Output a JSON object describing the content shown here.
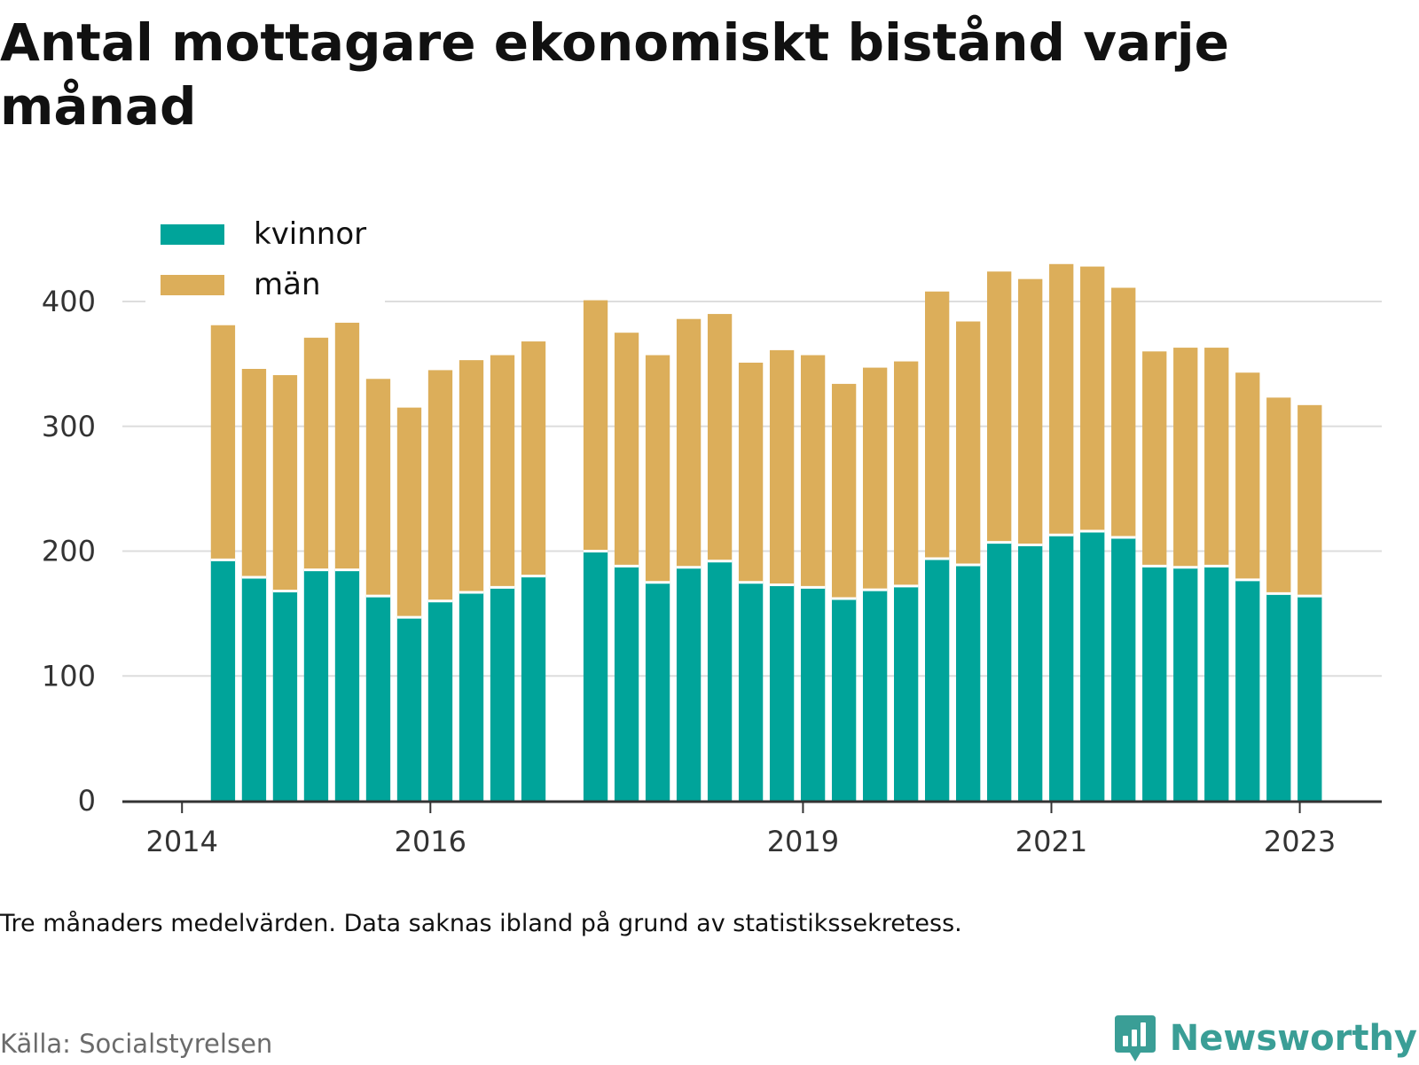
{
  "title": "Antal mottagare ekonomiskt bistånd varje månad",
  "note": "Tre månaders medelvärden. Data saknas ibland på grund av statistikssekretess.",
  "source": "Källa: Socialstyrelsen",
  "brand": {
    "name": "Newsworthy",
    "icon": "newsworthy-bar-chart-icon"
  },
  "colors": {
    "kvinnor": "#00a49a",
    "man": "#dcae5a",
    "grid": "#dddddd",
    "axis": "#333333",
    "brand": "#3a9e96"
  },
  "chart_data": {
    "type": "bar",
    "stacked": true,
    "legend": {
      "placement": "top-left",
      "entries": [
        "kvinnor",
        "män"
      ]
    },
    "grid": true,
    "ylim": [
      0,
      400
    ],
    "y_ticks": [
      0,
      100,
      200,
      300,
      400
    ],
    "xlabel": "",
    "ylabel": "",
    "x_ticks": [
      {
        "label": "2014",
        "x": 2014.0
      },
      {
        "label": "2016",
        "x": 2016.0
      },
      {
        "label": "2019",
        "x": 2019.0
      },
      {
        "label": "2021",
        "x": 2021.0
      },
      {
        "label": "2023",
        "x": 2023.0
      }
    ],
    "x_range": [
      2013.52,
      2023.66
    ],
    "bar_width_years": 0.195,
    "x": [
      2014.33,
      2014.58,
      2014.83,
      2015.08,
      2015.33,
      2015.58,
      2015.83,
      2016.08,
      2016.33,
      2016.58,
      2016.83,
      2017.33,
      2017.58,
      2017.83,
      2018.08,
      2018.33,
      2018.58,
      2018.83,
      2019.08,
      2019.33,
      2019.58,
      2019.83,
      2020.08,
      2020.33,
      2020.58,
      2020.83,
      2021.08,
      2021.33,
      2021.58,
      2021.83,
      2022.08,
      2022.33,
      2022.58,
      2022.83,
      2023.08
    ],
    "series": [
      {
        "name": "kvinnor",
        "values": [
          193,
          179,
          168,
          185,
          185,
          164,
          147,
          160,
          167,
          171,
          180,
          200,
          188,
          175,
          187,
          192,
          175,
          173,
          171,
          162,
          169,
          172,
          194,
          189,
          207,
          205,
          213,
          216,
          211,
          188,
          187,
          188,
          177,
          166,
          164
        ]
      },
      {
        "name": "män",
        "values": [
          188,
          167,
          173,
          186,
          198,
          174,
          168,
          185,
          186,
          186,
          188,
          201,
          187,
          182,
          199,
          198,
          176,
          188,
          186,
          172,
          178,
          180,
          214,
          195,
          217,
          213,
          217,
          212,
          200,
          172,
          176,
          175,
          166,
          157,
          153
        ]
      }
    ]
  }
}
